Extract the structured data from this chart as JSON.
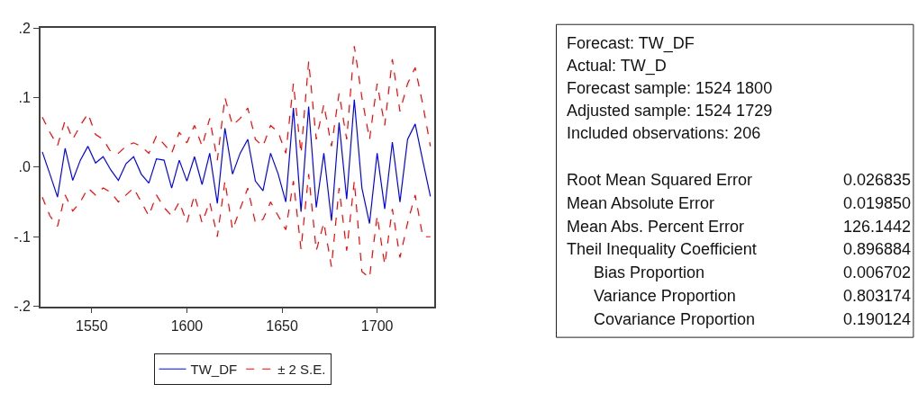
{
  "chart_data": [
    {
      "type": "line",
      "x": [
        1524,
        1528,
        1532,
        1536,
        1540,
        1544,
        1548,
        1552,
        1556,
        1560,
        1564,
        1568,
        1572,
        1576,
        1580,
        1584,
        1588,
        1592,
        1596,
        1600,
        1604,
        1608,
        1612,
        1616,
        1620,
        1624,
        1628,
        1632,
        1636,
        1640,
        1644,
        1648,
        1652,
        1656,
        1660,
        1664,
        1668,
        1672,
        1676,
        1680,
        1684,
        1688,
        1692,
        1696,
        1700,
        1704,
        1708,
        1712,
        1716,
        1720,
        1724,
        1728
      ],
      "series": [
        {
          "name": "TW_DF",
          "color": "#0000ff",
          "line_style": "solid",
          "values": [
            0.022,
            -0.01,
            -0.043,
            0.027,
            -0.019,
            0.01,
            0.03,
            0.006,
            0.015,
            -0.004,
            -0.019,
            0.005,
            0.015,
            -0.01,
            -0.023,
            0.012,
            0.01,
            -0.03,
            0.01,
            -0.02,
            0.015,
            -0.025,
            0.02,
            -0.052,
            0.056,
            -0.01,
            0.02,
            0.04,
            -0.02,
            -0.034,
            0.02,
            -0.01,
            -0.05,
            0.085,
            -0.064,
            0.087,
            -0.058,
            0.02,
            -0.077,
            0.064,
            -0.046,
            0.097,
            -0.03,
            -0.081,
            0.02,
            -0.06,
            0.036,
            -0.05,
            0.04,
            0.062,
            0.009,
            -0.042
          ]
        },
        {
          "name": "± 2 S.E.",
          "color": "#ff0000",
          "line_style": "dashed",
          "values": [
            0.072,
            0.05,
            0.031,
            0.067,
            0.04,
            0.06,
            0.077,
            0.047,
            0.04,
            0.022,
            0.02,
            0.03,
            0.035,
            0.03,
            0.02,
            0.045,
            0.033,
            0.02,
            0.05,
            0.035,
            0.06,
            0.03,
            0.07,
            0.01,
            0.1,
            0.06,
            0.07,
            0.085,
            0.04,
            0.03,
            0.06,
            0.05,
            0.02,
            0.12,
            0.02,
            0.152,
            0.04,
            0.09,
            0.03,
            0.106,
            0.04,
            0.174,
            0.1,
            0.04,
            0.12,
            0.06,
            0.155,
            0.08,
            0.12,
            0.143,
            0.09,
            0.03
          ]
        },
        {
          "color": "#ff0000",
          "line_style": "dashed",
          "values": [
            -0.043,
            -0.07,
            -0.085,
            -0.04,
            -0.063,
            -0.05,
            -0.03,
            -0.04,
            -0.03,
            -0.036,
            -0.05,
            -0.04,
            -0.03,
            -0.05,
            -0.07,
            -0.04,
            -0.058,
            -0.07,
            -0.05,
            -0.08,
            -0.04,
            -0.08,
            -0.05,
            -0.1,
            -0.02,
            -0.09,
            -0.06,
            -0.03,
            -0.08,
            -0.075,
            -0.05,
            -0.07,
            -0.09,
            -0.02,
            -0.118,
            -0.01,
            -0.12,
            -0.08,
            -0.143,
            -0.03,
            -0.12,
            -0.02,
            -0.15,
            -0.159,
            -0.07,
            -0.14,
            -0.06,
            -0.13,
            -0.08,
            -0.04,
            -0.1,
            -0.1
          ]
        }
      ],
      "xlim": [
        1523,
        1730
      ],
      "xticks": [
        1550,
        1600,
        1650,
        1700
      ],
      "ylim": [
        -0.2,
        0.2
      ],
      "yticks": [
        {
          "value": -0.2,
          "label": "-.2"
        },
        {
          "value": -0.1,
          "label": "-.1"
        },
        {
          "value": 0,
          "label": ".0"
        },
        {
          "value": 0.1,
          "label": ".1"
        },
        {
          "value": 0.2,
          "label": ".2"
        }
      ],
      "legend": "bottom",
      "marker": "none"
    },
    {
      "type": "other",
      "annotations": [
        "Forecast: TW_DF",
        "Actual: TW_D",
        "Forecast sample: 1524 1800",
        "Adjusted sample: 1524 1729",
        "Included observations: 206"
      ],
      "categories": [
        "Root Mean Squared Error",
        "Mean Absolute Error",
        "Mean Abs. Percent Error",
        "Theil Inequality Coefficient",
        "Bias Proportion",
        "Variance Proportion",
        "Covariance Proportion"
      ],
      "value_labels": [
        "0.026835",
        "0.019850",
        "126.1442",
        "0.896884",
        "0.006702",
        "0.803174",
        "0.190124"
      ]
    }
  ]
}
